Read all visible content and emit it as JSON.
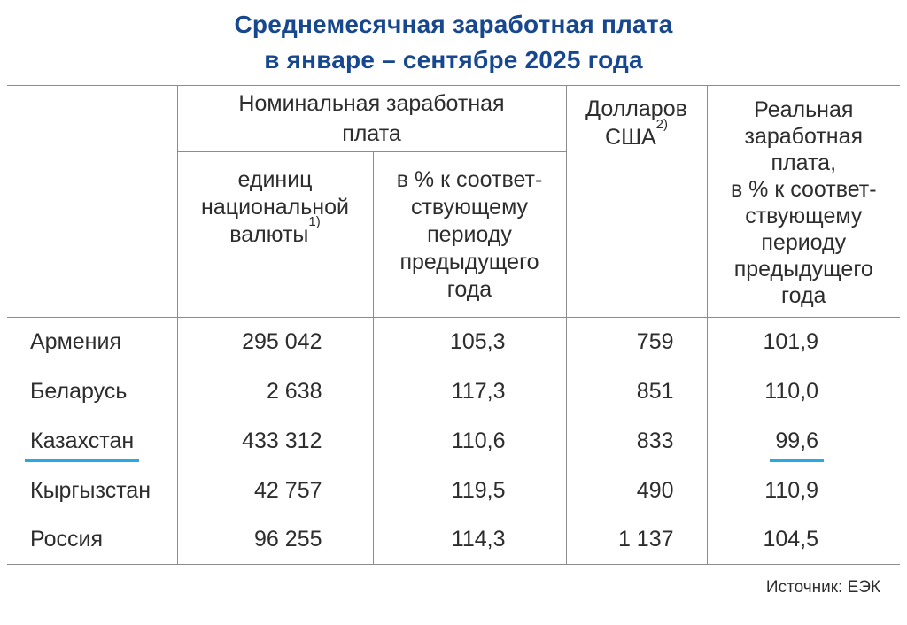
{
  "title": {
    "line1": "Среднемесячная заработная плата",
    "line2": "в январе – сентябре 2025 года"
  },
  "footer": {
    "source": "Источник: ЕЭК"
  },
  "colors": {
    "title_blue": "#17478E",
    "highlight_underline": "#29A9E1",
    "table_border": "#8C8C8C",
    "text": "#2D2D2D"
  },
  "chart_data": {
    "type": "table",
    "title": "Среднемесячная заработная плата в январе – сентябре 2025 года",
    "header": {
      "nominal_group": "Номинальная заработная\nплата",
      "col_national": "единиц\nнациональной\nвалюты",
      "col_national_footnote": "1)",
      "col_pct": "в % к соответ-\nствующему\nпериоду\nпредыдущего\nгода",
      "col_usd": "Долларов\nСША",
      "col_usd_footnote": "2)",
      "col_real": "Реальная\nзаработная\nплата,\nв % к соответ-\nствующему\nпериоду\nпредыдущего\nгода"
    },
    "rows": [
      {
        "country": "Армения",
        "national_currency": "295 042",
        "pct_prev_year": "105,3",
        "usd": "759",
        "real_pct": "101,9",
        "highlighted": false
      },
      {
        "country": "Беларусь",
        "national_currency": "2 638",
        "pct_prev_year": "117,3",
        "usd": "851",
        "real_pct": "110,0",
        "highlighted": false
      },
      {
        "country": "Казахстан",
        "national_currency": "433 312",
        "pct_prev_year": "110,6",
        "usd": "833",
        "real_pct": "99,6",
        "highlighted": true
      },
      {
        "country": "Кыргызстан",
        "national_currency": "42 757",
        "pct_prev_year": "119,5",
        "usd": "490",
        "real_pct": "110,9",
        "highlighted": false
      },
      {
        "country": "Россия",
        "national_currency": "96 255",
        "pct_prev_year": "114,3",
        "usd": "1 137",
        "real_pct": "104,5",
        "highlighted": false
      }
    ]
  }
}
